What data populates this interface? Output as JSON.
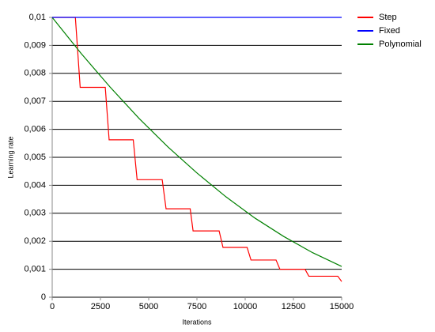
{
  "chart_data": {
    "type": "line",
    "xlabel": "Iterations",
    "ylabel": "Learning rate",
    "xlim": [
      0,
      15000
    ],
    "xticks": [
      0,
      2500,
      5000,
      7500,
      10000,
      12500,
      15000
    ],
    "ylim": [
      0,
      0.01
    ],
    "yticks": [
      0,
      {
        "value": 0.001,
        "label": "0,001"
      },
      {
        "value": 0.002,
        "label": "0,002"
      },
      {
        "value": 0.003,
        "label": "0,003"
      },
      {
        "value": 0.004,
        "label": "0,004"
      },
      {
        "value": 0.005,
        "label": "0,005"
      },
      {
        "value": 0.006,
        "label": "0,006"
      },
      {
        "value": 0.007,
        "label": "0,007"
      },
      {
        "value": 0.008,
        "label": "0,008"
      },
      {
        "value": 0.009,
        "label": "0,009"
      },
      {
        "value": 0.01,
        "label": "0,01"
      }
    ],
    "grid": true,
    "legend": "right",
    "series": [
      {
        "name": "Step",
        "color": "#ff0000",
        "x": [
          0,
          1200,
          1450,
          2750,
          2950,
          4200,
          4400,
          5700,
          5900,
          7150,
          7300,
          8650,
          8850,
          10100,
          10300,
          11600,
          11800,
          13100,
          13300,
          14800,
          15000
        ],
        "values": [
          0.01,
          0.01,
          0.0075,
          0.0075,
          0.005625,
          0.005625,
          0.0042,
          0.0042,
          0.00316,
          0.00316,
          0.00237,
          0.00237,
          0.00178,
          0.00178,
          0.00133,
          0.00133,
          0.001,
          0.001,
          0.00075,
          0.00075,
          0.00056
        ]
      },
      {
        "name": "Fixed",
        "color": "#0000ff",
        "x": [
          0,
          15000
        ],
        "values": [
          0.01,
          0.01
        ]
      },
      {
        "name": "Polynomial",
        "color": "#008000",
        "x": [
          0,
          1500,
          3000,
          4500,
          6000,
          7500,
          9000,
          10500,
          12000,
          13500,
          15000
        ],
        "values": [
          0.01,
          0.00871,
          0.00751,
          0.00639,
          0.00537,
          0.00444,
          0.00359,
          0.00283,
          0.00217,
          0.00159,
          0.0011
        ]
      }
    ]
  }
}
